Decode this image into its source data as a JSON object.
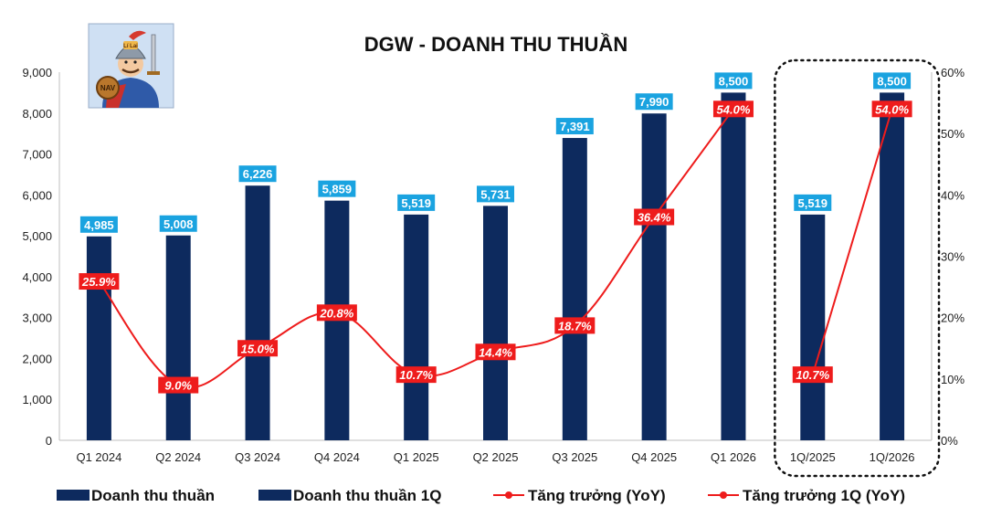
{
  "chart_data": {
    "type": "bar",
    "title": "DGW - DOANH THU THUẦN",
    "categories": [
      "Q1 2024",
      "Q2 2024",
      "Q3 2024",
      "Q4 2024",
      "Q1 2025",
      "Q2 2025",
      "Q3 2025",
      "Q4 2025",
      "Q1 2026",
      "1Q/2025",
      "1Q/2026"
    ],
    "y_left": {
      "min": 0,
      "max": 9000,
      "step": 1000,
      "ticks": [
        "0",
        "1,000",
        "2,000",
        "3,000",
        "4,000",
        "5,000",
        "6,000",
        "7,000",
        "8,000",
        "9,000"
      ]
    },
    "y_right": {
      "min": 0,
      "max": 60,
      "step": 10,
      "ticks": [
        "0%",
        "10%",
        "20%",
        "30%",
        "40%",
        "50%",
        "60%"
      ]
    },
    "series": [
      {
        "name": "Doanh thu thuần",
        "type": "bar",
        "axis": "left",
        "color": "#0d2a5e",
        "values": [
          4985,
          5008,
          6226,
          5859,
          5519,
          5731,
          7391,
          7990,
          8500,
          null,
          null
        ],
        "labels": [
          "4,985",
          "5,008",
          "6,226",
          "5,859",
          "5,519",
          "5,731",
          "7,391",
          "7,990",
          "8,500",
          "",
          ""
        ]
      },
      {
        "name": "Doanh thu thuần 1Q",
        "type": "bar",
        "axis": "left",
        "color": "#0d2a5e",
        "values": [
          null,
          null,
          null,
          null,
          null,
          null,
          null,
          null,
          null,
          5519,
          8500
        ],
        "labels": [
          "",
          "",
          "",
          "",
          "",
          "",
          "",
          "",
          "",
          "5,519",
          "8,500"
        ]
      },
      {
        "name": "Tăng trưởng (YoY)",
        "type": "line",
        "axis": "right",
        "color": "#ee1c1c",
        "values": [
          25.9,
          9.0,
          15.0,
          20.8,
          10.7,
          14.4,
          18.7,
          36.4,
          54.0,
          null,
          null
        ],
        "labels": [
          "25.9%",
          "9.0%",
          "15.0%",
          "20.8%",
          "10.7%",
          "14.4%",
          "18.7%",
          "36.4%",
          "54.0%",
          "",
          ""
        ]
      },
      {
        "name": "Tăng trưởng 1Q (YoY)",
        "type": "line",
        "axis": "right",
        "color": "#ee1c1c",
        "values": [
          null,
          null,
          null,
          null,
          null,
          null,
          null,
          null,
          null,
          10.7,
          54.0
        ],
        "labels": [
          "",
          "",
          "",
          "",
          "",
          "",
          "",
          "",
          "",
          "10.7%",
          "54.0%"
        ]
      }
    ],
    "label_box_color": "#1aa3e0",
    "growth_label_color": "#ee1c1c",
    "highlight": "dotted rounded box around 1Q/2025 and 1Q/2026",
    "legend_position": "bottom",
    "grid": false
  },
  "logo": {
    "badge_text": "NAV",
    "helmet_text": "Lí Lai",
    "icon": "knight-mascot-logo"
  }
}
